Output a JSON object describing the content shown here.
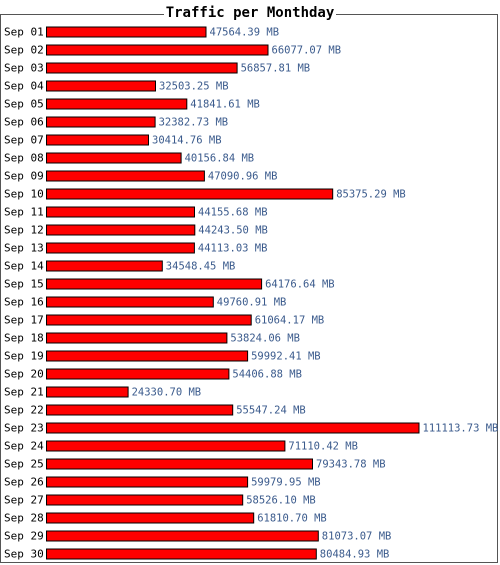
{
  "chart_data": {
    "type": "bar",
    "orientation": "horizontal",
    "title": "Traffic per Monthday",
    "unit": "MB",
    "bar_color": "#ff0000",
    "bar_border": "#000000",
    "value_label_color": "#3a5a8c",
    "categories": [
      "Sep 01",
      "Sep 02",
      "Sep 03",
      "Sep 04",
      "Sep 05",
      "Sep 06",
      "Sep 07",
      "Sep 08",
      "Sep 09",
      "Sep 10",
      "Sep 11",
      "Sep 12",
      "Sep 13",
      "Sep 14",
      "Sep 15",
      "Sep 16",
      "Sep 17",
      "Sep 18",
      "Sep 19",
      "Sep 20",
      "Sep 21",
      "Sep 22",
      "Sep 23",
      "Sep 24",
      "Sep 25",
      "Sep 26",
      "Sep 27",
      "Sep 28",
      "Sep 29",
      "Sep 30"
    ],
    "values": [
      47564.39,
      66077.07,
      56857.81,
      32503.25,
      41841.61,
      32382.73,
      30414.76,
      40156.84,
      47090.96,
      85375.29,
      44155.68,
      44243.5,
      44113.03,
      34548.45,
      64176.64,
      49760.91,
      61064.17,
      53824.06,
      59992.41,
      54406.88,
      24330.7,
      55547.24,
      111113.73,
      71110.42,
      79343.78,
      59979.95,
      58526.1,
      61810.7,
      81073.07,
      80484.93
    ],
    "value_labels": [
      "47564.39 MB",
      "66077.07 MB",
      "56857.81 MB",
      "32503.25 MB",
      "41841.61 MB",
      "32382.73 MB",
      "30414.76 MB",
      "40156.84 MB",
      "47090.96 MB",
      "85375.29 MB",
      "44155.68 MB",
      "44243.50 MB",
      "44113.03 MB",
      "34548.45 MB",
      "64176.64 MB",
      "49760.91 MB",
      "61064.17 MB",
      "53824.06 MB",
      "59992.41 MB",
      "54406.88 MB",
      "24330.70 MB",
      "55547.24 MB",
      "111113.73 MB",
      "71110.42 MB",
      "79343.78 MB",
      "59979.95 MB",
      "58526.10 MB",
      "61810.70 MB",
      "81073.07 MB",
      "80484.93 MB"
    ],
    "xlim": [
      0,
      111113.73
    ],
    "grid": false,
    "legend": "none"
  }
}
